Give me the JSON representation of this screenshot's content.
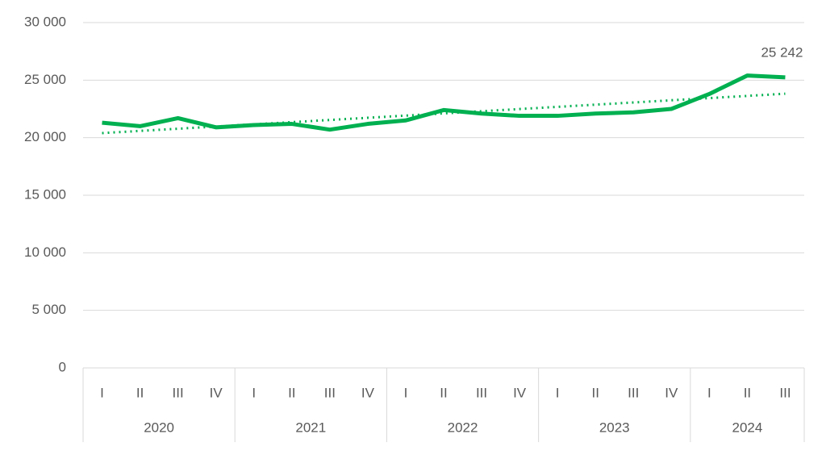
{
  "chart_data": {
    "type": "line",
    "groups": [
      {
        "name": "2020",
        "categories": [
          "I",
          "II",
          "III",
          "IV"
        ]
      },
      {
        "name": "2021",
        "categories": [
          "I",
          "II",
          "III",
          "IV"
        ]
      },
      {
        "name": "2022",
        "categories": [
          "I",
          "II",
          "III",
          "IV"
        ]
      },
      {
        "name": "2023",
        "categories": [
          "I",
          "II",
          "III",
          "IV"
        ]
      },
      {
        "name": "2024",
        "categories": [
          "I",
          "II",
          "III"
        ]
      }
    ],
    "series": [
      {
        "color": "#00b050",
        "style": "solid",
        "values": [
          21300,
          21000,
          21700,
          20900,
          21100,
          21200,
          20700,
          21200,
          21500,
          22400,
          22100,
          21900,
          21900,
          22100,
          22200,
          22500,
          23800,
          25400,
          25242
        ],
        "value_labels": [
          null,
          null,
          null,
          null,
          null,
          null,
          null,
          null,
          null,
          null,
          null,
          null,
          null,
          null,
          null,
          null,
          null,
          null,
          "25 242"
        ]
      },
      {
        "color": "#00b050",
        "style": "dotted",
        "values": [
          20400,
          20590,
          20780,
          20970,
          21160,
          21350,
          21540,
          21730,
          21920,
          22110,
          22300,
          22490,
          22680,
          22870,
          23060,
          23250,
          23440,
          23630,
          23820
        ]
      }
    ],
    "ylim": [
      0,
      30000
    ],
    "yticks": [
      0,
      {
        "value": 5000,
        "label": "5 000"
      },
      {
        "value": 10000,
        "label": "10 000"
      },
      {
        "value": 15000,
        "label": "15 000"
      },
      {
        "value": 20000,
        "label": "20 000"
      },
      {
        "value": 25000,
        "label": "25 000"
      },
      {
        "value": 30000,
        "label": "30 000"
      }
    ],
    "grid": true
  }
}
